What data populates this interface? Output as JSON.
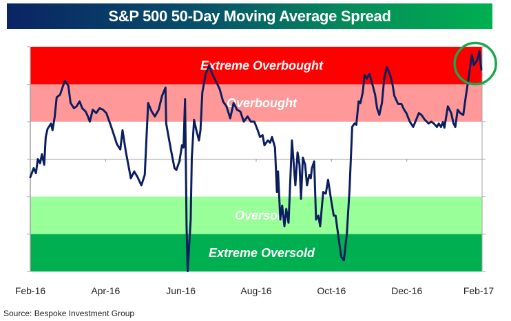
{
  "chart_data": {
    "type": "line",
    "title": "S&P 500 50-Day Moving Average Spread",
    "xlabel": "",
    "ylabel": "",
    "x_tick_labels": [
      "Feb-16",
      "Apr-16",
      "Jun-16",
      "Aug-16",
      "Oct-16",
      "Dec-16",
      "Feb-17"
    ],
    "x_unit": "months since Feb-16",
    "xlim": [
      0,
      12
    ],
    "ylim": [
      -3,
      3
    ],
    "y_unit": "standard deviations (band units)",
    "y_tick_labels_visible": false,
    "grid": false,
    "zero_line": true,
    "bands": [
      {
        "label": "Extreme Overbought",
        "from": 2,
        "to": 3,
        "color": "#ff0000"
      },
      {
        "label": "Overbought",
        "from": 1,
        "to": 2,
        "color": "#ff9999"
      },
      {
        "label": "",
        "from": -1,
        "to": 1,
        "color": "#ffffff"
      },
      {
        "label": "Oversold",
        "from": -2,
        "to": -1,
        "color": "#99ff99"
      },
      {
        "label": "Extreme Oversold",
        "from": -3,
        "to": -2,
        "color": "#00b050"
      }
    ],
    "series": [
      {
        "name": "50-Day Moving Average Spread",
        "color": "#0b1f5e",
        "points": [
          [
            0.0,
            -0.48
          ],
          [
            0.09,
            -0.24
          ],
          [
            0.15,
            -0.37
          ],
          [
            0.2,
            0.0
          ],
          [
            0.26,
            -0.11
          ],
          [
            0.31,
            0.13
          ],
          [
            0.37,
            -0.15
          ],
          [
            0.41,
            0.59
          ],
          [
            0.46,
            0.81
          ],
          [
            0.55,
            0.95
          ],
          [
            0.59,
            0.77
          ],
          [
            0.65,
            1.14
          ],
          [
            0.7,
            1.65
          ],
          [
            0.79,
            1.72
          ],
          [
            0.87,
            1.96
          ],
          [
            0.92,
            2.09
          ],
          [
            1.01,
            1.96
          ],
          [
            1.07,
            1.5
          ],
          [
            1.16,
            1.36
          ],
          [
            1.23,
            1.41
          ],
          [
            1.31,
            1.54
          ],
          [
            1.38,
            1.36
          ],
          [
            1.47,
            1.27
          ],
          [
            1.53,
            1.14
          ],
          [
            1.58,
            1.0
          ],
          [
            1.66,
            1.32
          ],
          [
            1.75,
            1.23
          ],
          [
            1.84,
            1.36
          ],
          [
            1.93,
            1.32
          ],
          [
            2.02,
            1.23
          ],
          [
            2.12,
            0.95
          ],
          [
            2.21,
            0.68
          ],
          [
            2.3,
            0.4
          ],
          [
            2.39,
            0.26
          ],
          [
            2.45,
            0.77
          ],
          [
            2.54,
            0.18
          ],
          [
            2.67,
            -0.51
          ],
          [
            2.76,
            -0.33
          ],
          [
            2.85,
            -0.48
          ],
          [
            2.95,
            -0.7
          ],
          [
            3.04,
            -0.42
          ],
          [
            3.13,
            1.5
          ],
          [
            3.22,
            1.28
          ],
          [
            3.31,
            1.14
          ],
          [
            3.41,
            1.32
          ],
          [
            3.5,
            1.69
          ],
          [
            3.59,
            1.91
          ],
          [
            3.61,
            0.95
          ],
          [
            3.74,
            0.22
          ],
          [
            3.83,
            -0.24
          ],
          [
            3.88,
            -0.29
          ],
          [
            3.96,
            -0.06
          ],
          [
            4.03,
            0.37
          ],
          [
            4.07,
            0.31
          ],
          [
            4.11,
            1.6
          ],
          [
            4.13,
            0.04
          ],
          [
            4.15,
            -1.79
          ],
          [
            4.18,
            -2.99
          ],
          [
            4.26,
            -1.61
          ],
          [
            4.29,
            0.04
          ],
          [
            4.35,
            1.05
          ],
          [
            4.41,
            0.77
          ],
          [
            4.48,
            0.5
          ],
          [
            4.52,
            0.77
          ],
          [
            4.57,
            1.78
          ],
          [
            4.66,
            2.28
          ],
          [
            4.75,
            2.48
          ],
          [
            4.85,
            2.24
          ],
          [
            4.94,
            2.06
          ],
          [
            5.03,
            1.87
          ],
          [
            5.12,
            1.54
          ],
          [
            5.21,
            1.41
          ],
          [
            5.31,
            1.09
          ],
          [
            5.4,
            1.5
          ],
          [
            5.49,
            1.32
          ],
          [
            5.58,
            1.27
          ],
          [
            5.67,
            1.0
          ],
          [
            5.77,
            1.14
          ],
          [
            5.86,
            1.0
          ],
          [
            5.95,
            1.0
          ],
          [
            6.04,
            0.77
          ],
          [
            6.1,
            0.59
          ],
          [
            6.17,
            0.64
          ],
          [
            6.22,
            0.37
          ],
          [
            6.31,
            0.5
          ],
          [
            6.37,
            0.44
          ],
          [
            6.42,
            0.59
          ],
          [
            6.5,
            0.31
          ],
          [
            6.55,
            -0.88
          ],
          [
            6.58,
            -0.33
          ],
          [
            6.64,
            -1.61
          ],
          [
            6.69,
            -1.24
          ],
          [
            6.75,
            -1.79
          ],
          [
            6.8,
            -1.33
          ],
          [
            6.86,
            -1.7
          ],
          [
            6.95,
            0.5
          ],
          [
            7.04,
            -0.7
          ],
          [
            7.1,
            0.18
          ],
          [
            7.15,
            -0.15
          ],
          [
            7.19,
            -1.06
          ],
          [
            7.24,
            0.04
          ],
          [
            7.3,
            -0.15
          ],
          [
            7.35,
            -0.7
          ],
          [
            7.41,
            -0.42
          ],
          [
            7.45,
            -0.51
          ],
          [
            7.48,
            -0.24
          ],
          [
            7.54,
            -0.06
          ],
          [
            7.59,
            -1.61
          ],
          [
            7.65,
            -1.51
          ],
          [
            7.7,
            -1.79
          ],
          [
            7.78,
            -0.88
          ],
          [
            7.85,
            -0.92
          ],
          [
            7.91,
            -0.55
          ],
          [
            8.0,
            -1.15
          ],
          [
            8.06,
            -1.51
          ],
          [
            8.11,
            -1.51
          ],
          [
            8.19,
            -2.11
          ],
          [
            8.26,
            -2.61
          ],
          [
            8.33,
            -2.7
          ],
          [
            8.41,
            -1.98
          ],
          [
            8.48,
            -0.79
          ],
          [
            8.55,
            0.86
          ],
          [
            8.61,
            0.95
          ],
          [
            8.66,
            0.92
          ],
          [
            8.72,
            1.54
          ],
          [
            8.77,
            1.5
          ],
          [
            8.83,
            1.78
          ],
          [
            8.88,
            2.24
          ],
          [
            8.94,
            2.15
          ],
          [
            9.01,
            2.28
          ],
          [
            9.07,
            2.06
          ],
          [
            9.16,
            1.72
          ],
          [
            9.21,
            1.36
          ],
          [
            9.27,
            1.18
          ],
          [
            9.34,
            1.5
          ],
          [
            9.4,
            2.15
          ],
          [
            9.47,
            2.46
          ],
          [
            9.56,
            2.24
          ],
          [
            9.62,
            2.0
          ],
          [
            9.67,
            1.69
          ],
          [
            9.77,
            1.47
          ],
          [
            9.86,
            1.47
          ],
          [
            9.93,
            1.32
          ],
          [
            9.99,
            1.23
          ],
          [
            10.08,
            1.0
          ],
          [
            10.17,
            0.86
          ],
          [
            10.25,
            1.05
          ],
          [
            10.32,
            1.23
          ],
          [
            10.39,
            1.18
          ],
          [
            10.48,
            1.05
          ],
          [
            10.58,
            0.95
          ],
          [
            10.65,
            1.0
          ],
          [
            10.72,
            0.95
          ],
          [
            10.8,
            0.86
          ],
          [
            10.85,
            0.95
          ],
          [
            10.91,
            0.86
          ],
          [
            10.96,
            0.99
          ],
          [
            11.0,
            0.84
          ],
          [
            11.09,
            1.41
          ],
          [
            11.18,
            1.23
          ],
          [
            11.24,
            0.95
          ],
          [
            11.29,
            0.86
          ],
          [
            11.35,
            1.32
          ],
          [
            11.42,
            1.23
          ],
          [
            11.5,
            1.18
          ],
          [
            11.57,
            1.69
          ],
          [
            11.64,
            2.15
          ],
          [
            11.73,
            2.79
          ],
          [
            11.78,
            2.51
          ],
          [
            11.87,
            2.64
          ],
          [
            11.93,
            2.88
          ],
          [
            11.98,
            2.39
          ]
        ]
      }
    ],
    "annotations": [
      {
        "type": "circle",
        "color": "#1aa84a",
        "highlights": "Feb-17 peak in Extreme Overbought zone"
      }
    ]
  },
  "source": "Source: Bespoke Investment Group"
}
